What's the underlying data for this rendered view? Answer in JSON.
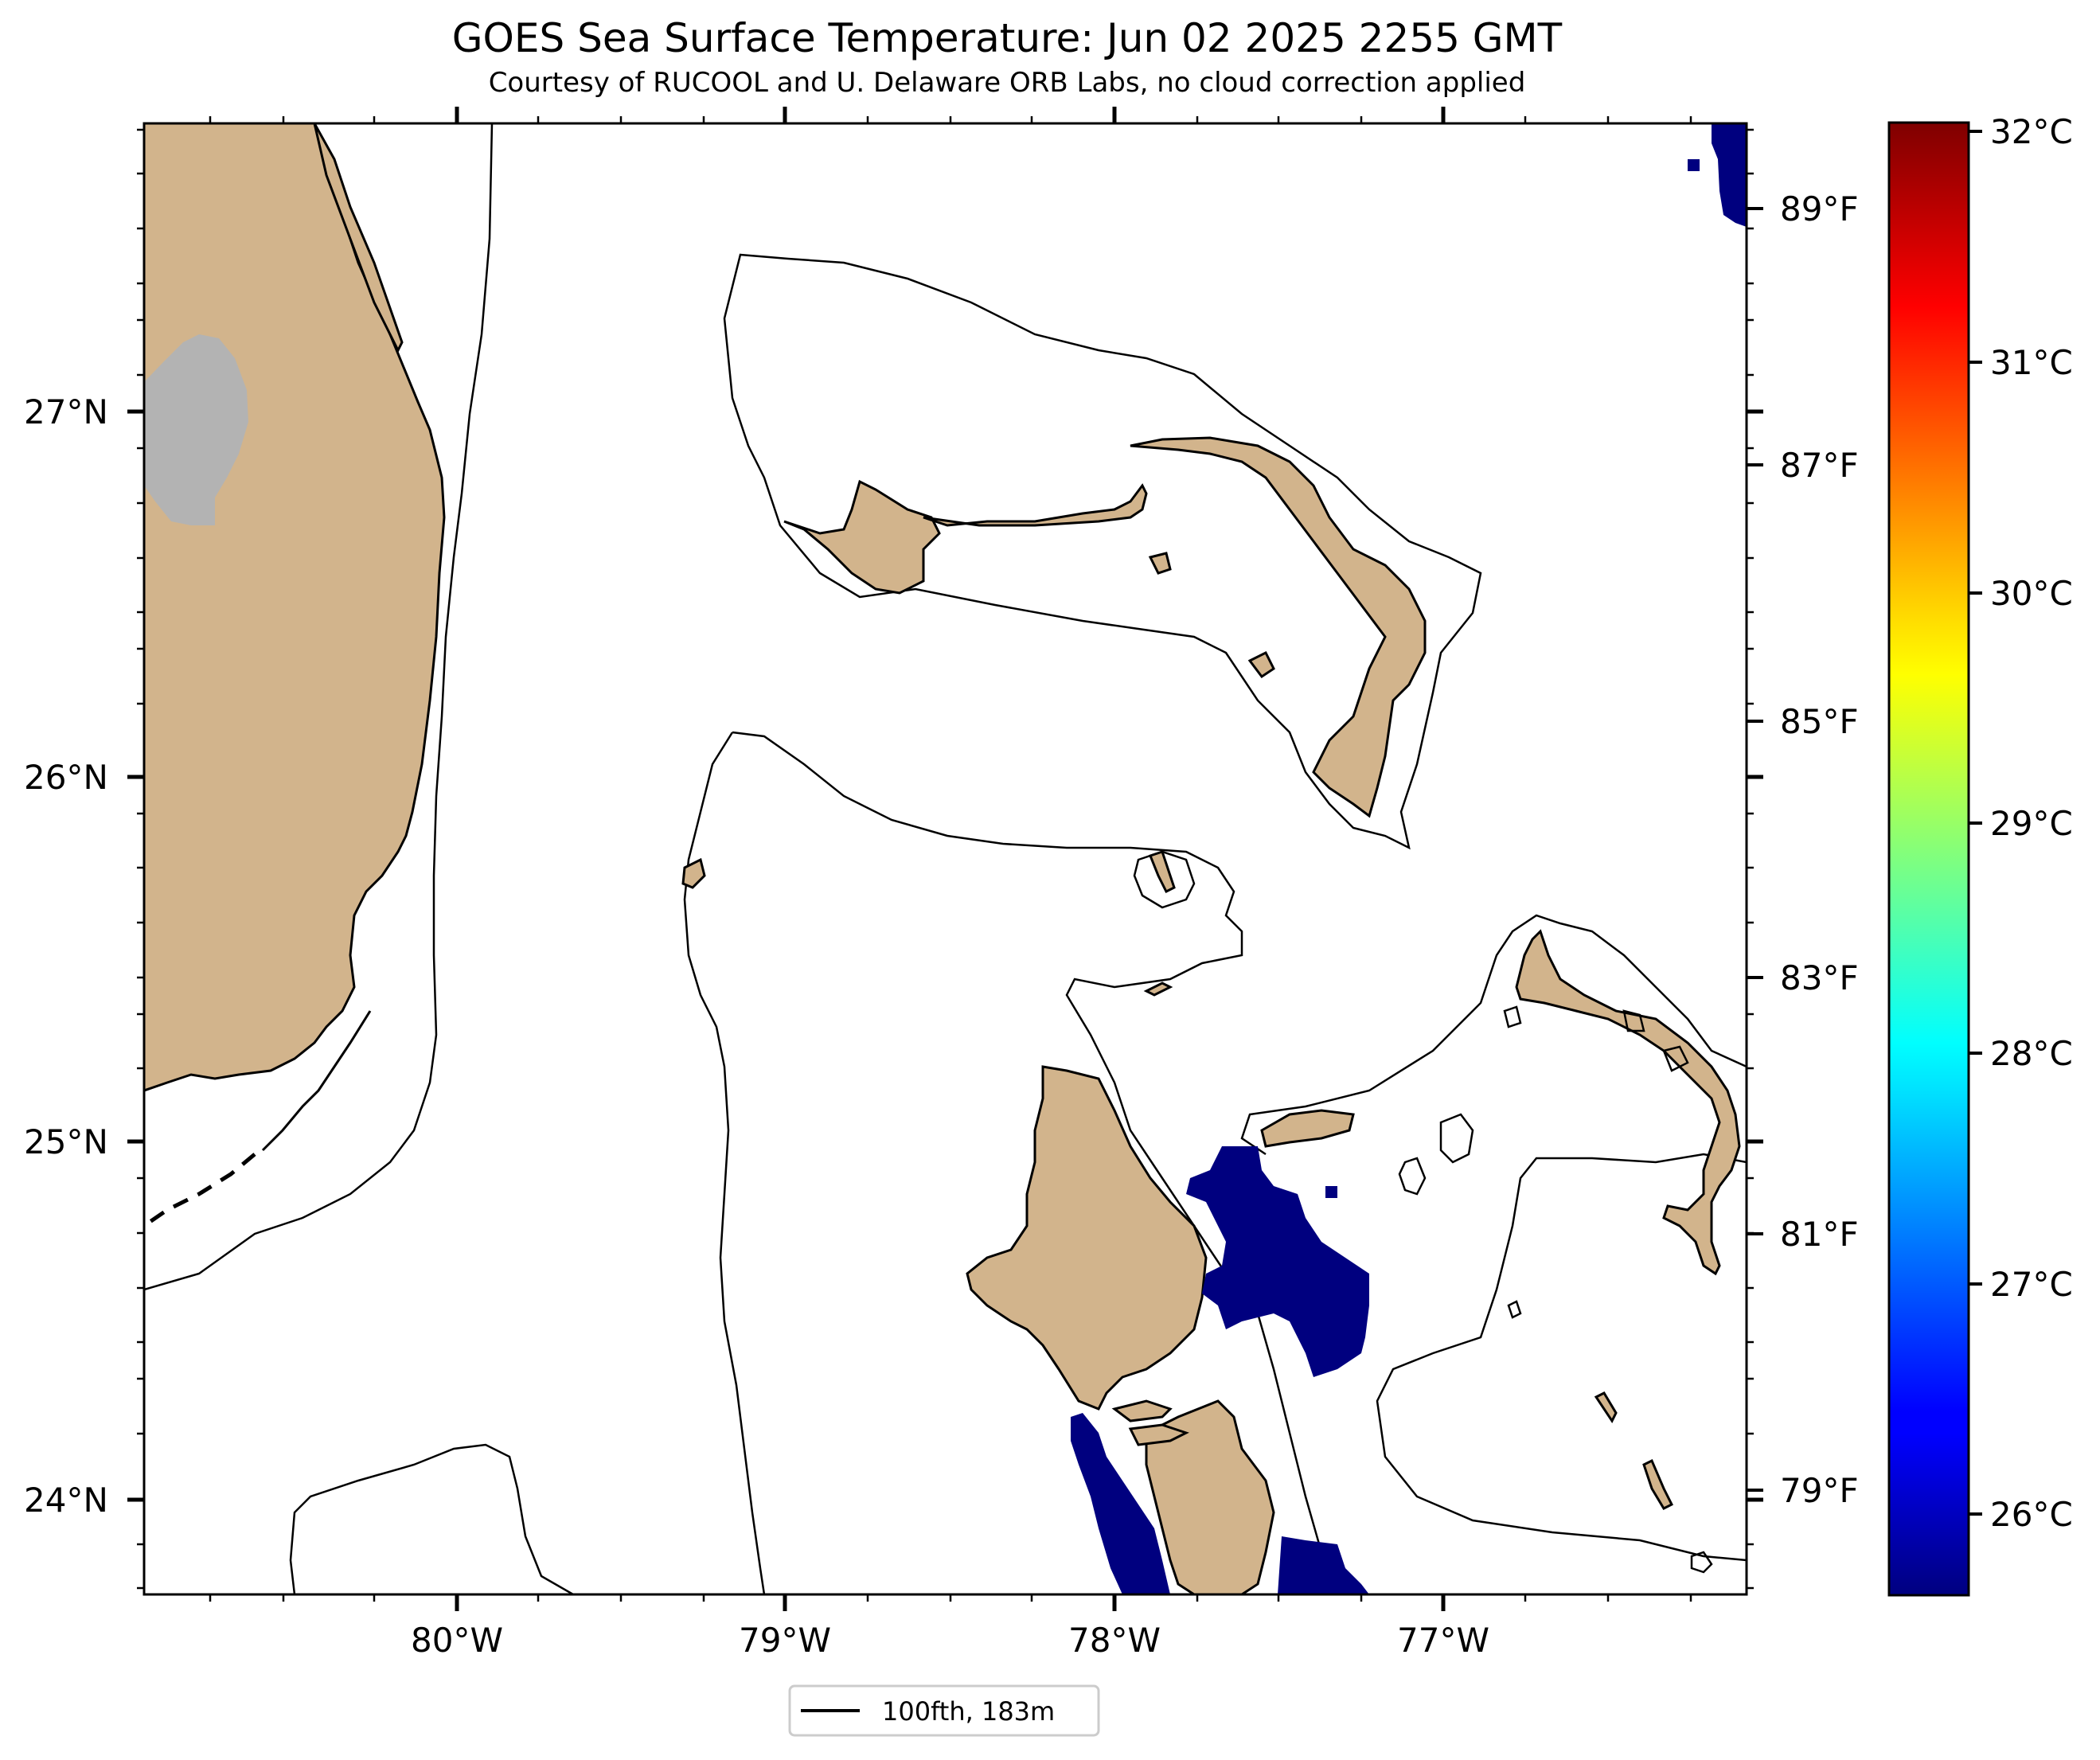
{
  "title": "GOES Sea Surface Temperature: Jun 02 2025 2255 GMT",
  "subtitle": "Courtesy of RUCOOL and U. Delaware ORB Labs, no cloud correction applied",
  "map": {
    "lat_labels": [
      "27°N",
      "26°N",
      "25°N",
      "24°N"
    ],
    "lon_labels": [
      "80°W",
      "79°W",
      "78°W",
      "77°W"
    ],
    "land_color": "#d2b48c",
    "cloud_color": "#b3b3b3",
    "cold_sst_color": "#00007f"
  },
  "colorbar": {
    "celsius_labels": [
      "32°C",
      "31°C",
      "30°C",
      "29°C",
      "28°C",
      "27°C",
      "26°C"
    ],
    "fahrenheit_labels": [
      "89°F",
      "87°F",
      "85°F",
      "83°F",
      "81°F",
      "79°F"
    ],
    "colormap": "jet"
  },
  "legend": {
    "label": "100fth, 183m"
  }
}
